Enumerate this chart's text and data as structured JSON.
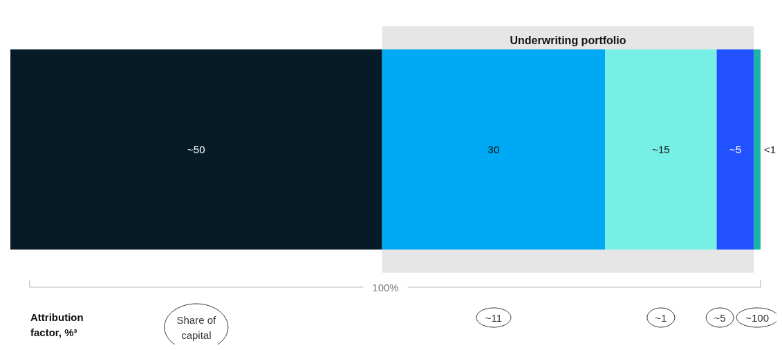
{
  "chart_data": {
    "type": "bar",
    "orientation": "horizontal",
    "stacked": true,
    "categories": [
      null
    ],
    "series": [
      {
        "color": "#061a28",
        "values": [
          50
        ],
        "value_labels": [
          "~50"
        ]
      },
      {
        "color": "#00a9f4",
        "values": [
          30
        ],
        "value_labels": [
          "30"
        ]
      },
      {
        "color": "#76f0e4",
        "values": [
          15
        ],
        "value_labels": [
          "~15"
        ]
      },
      {
        "color": "#2251ff",
        "values": [
          5
        ],
        "value_labels": [
          "~5"
        ]
      },
      {
        "color": "#1ab4a4",
        "values": [
          0.9
        ],
        "value_labels": [
          "<1"
        ]
      }
    ],
    "bands": [
      {
        "axis": "x",
        "from": 50,
        "to": 100,
        "label": "Underwriting portfolio",
        "color": "#e6e6e6"
      }
    ],
    "annotations": [
      "Attribution factor, %³",
      "100%",
      "Share of\ncapital",
      "~11",
      "~1",
      "~5",
      "~100"
    ]
  }
}
